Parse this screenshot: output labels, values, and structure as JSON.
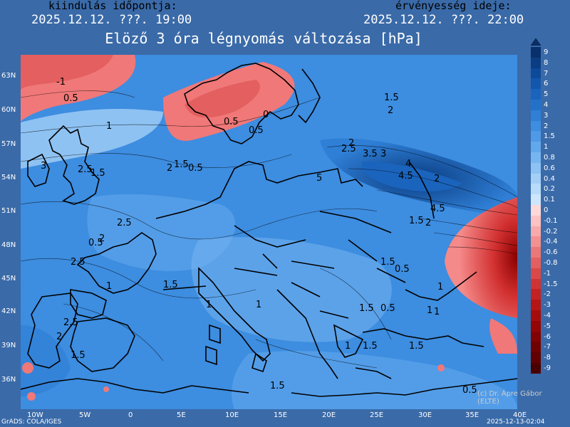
{
  "header": {
    "init_label": "kiindulás időpontja:",
    "init_time": "2025.12.12. ???. 19:00",
    "valid_label": "érvényesség ideje:",
    "valid_time": "2025.12.12. ???. 22:00"
  },
  "title": "Elöző 3 óra légnyomás változása [hPa]",
  "lat_labels": [
    "63N",
    "60N",
    "57N",
    "54N",
    "51N",
    "48N",
    "45N",
    "42N",
    "39N",
    "36N"
  ],
  "lon_labels": [
    "10W",
    "5W",
    "0",
    "5E",
    "10E",
    "15E",
    "20E",
    "25E",
    "30E",
    "35E",
    "40E"
  ],
  "legend": {
    "values": [
      "9",
      "8",
      "7",
      "6",
      "5",
      "4",
      "3",
      "2",
      "1.5",
      "1",
      "0.8",
      "0.6",
      "0.4",
      "0.2",
      "0.1",
      "0",
      "-0.1",
      "-0.2",
      "-0.4",
      "-0.6",
      "-0.8",
      "-1",
      "-1.5",
      "-2",
      "-3",
      "-4",
      "-5",
      "-6",
      "-7",
      "-8",
      "-9"
    ],
    "colors": [
      "#08306b",
      "#0b3d82",
      "#0d4a99",
      "#1257ad",
      "#1a64bd",
      "#2371cb",
      "#2f7fd6",
      "#3d8de0",
      "#4e9ae6",
      "#62a8ec",
      "#77b5f0",
      "#8dc2f3",
      "#a3cff6",
      "#b8dbf9",
      "#cde6fb",
      "#ffd9d9",
      "#fcc2c2",
      "#f8a9a9",
      "#f39090",
      "#ec7777",
      "#e45f5f",
      "#da4848",
      "#cf3333",
      "#c32222",
      "#b51515",
      "#a50c0c",
      "#940606",
      "#820303",
      "#700101",
      "#600000",
      "#500000"
    ]
  },
  "map_labels": [
    "-1",
    "0.5",
    "1.5",
    "2",
    "0",
    "0.5",
    "1",
    "0.5",
    "2",
    "2.5",
    "3.5",
    "3",
    "4",
    "4.5",
    "5",
    "1.5",
    "2.5",
    "3",
    "2",
    "1.5",
    "0.5",
    "2",
    "4.5",
    "1.5",
    "2",
    "2.5",
    "2",
    "2.5",
    "1.5",
    "1",
    "1.5",
    "1",
    "1.5",
    "0.5",
    "1",
    "2.5",
    "2",
    "1.5",
    "1",
    "1.5",
    "1.5",
    "1.5",
    "0.5",
    "0.5",
    "0.5",
    "1",
    "1",
    "1"
  ],
  "footer_left": "GrADS: COLA/IGES",
  "footer_right": "2025-12-13-02:04",
  "credit": "(c) Dr. Ápre Gábor\n(ELTE)"
}
